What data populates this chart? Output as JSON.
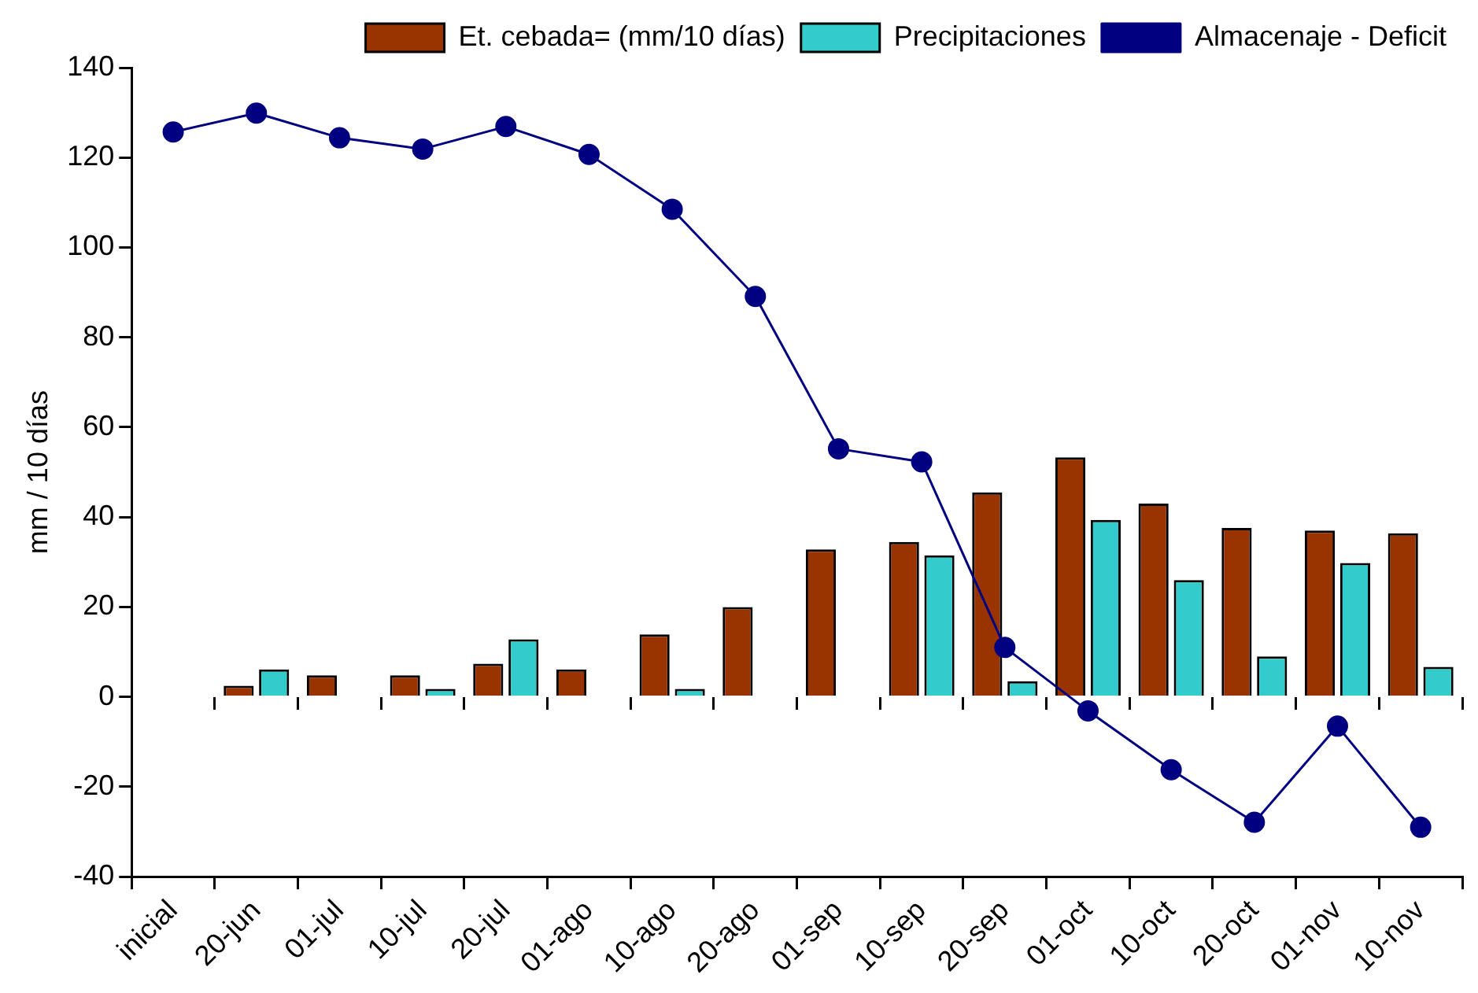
{
  "chart_data": {
    "type": "bar",
    "ylabel": "mm / 10 días",
    "categories": [
      "inicial",
      "20-jun",
      "01-jul",
      "10-jul",
      "20-jul",
      "01-ago",
      "10-ago",
      "20-ago",
      "01-sep",
      "10-sep",
      "20-sep",
      "01-oct",
      "10-oct",
      "20-oct",
      "01-nov",
      "10-nov"
    ],
    "series": [
      {
        "name": "Et. cebada= (mm/10 días)",
        "color": "#993300",
        "values": [
          null,
          2.5,
          4.8,
          4.8,
          7.4,
          6.1,
          13.9,
          20,
          32.8,
          34.5,
          45.5,
          53.3,
          43,
          37.6,
          37,
          36.4
        ]
      },
      {
        "name": "Precipitaciones",
        "color": "#33cccc",
        "values": [
          null,
          6.1,
          0,
          1.8,
          12.8,
          0,
          1.8,
          0,
          0,
          31.5,
          3.5,
          39.4,
          26,
          9,
          29.8,
          6.7
        ]
      },
      {
        "name": "Almacenaje - Deficit",
        "type": "line",
        "color": "#000080",
        "marker": "circle",
        "line_style": "solid",
        "values": [
          125.7,
          129.9,
          124.4,
          121.9,
          126.9,
          120.7,
          108.5,
          89.1,
          55.2,
          52.3,
          11,
          -3.1,
          -16.2,
          -27.9,
          -6.5,
          -29
        ]
      }
    ],
    "ylim": [
      -40,
      140
    ],
    "yticks": [
      -40,
      -20,
      0,
      20,
      40,
      60,
      80,
      100,
      120,
      140
    ],
    "grid": false,
    "legend": "top right"
  }
}
